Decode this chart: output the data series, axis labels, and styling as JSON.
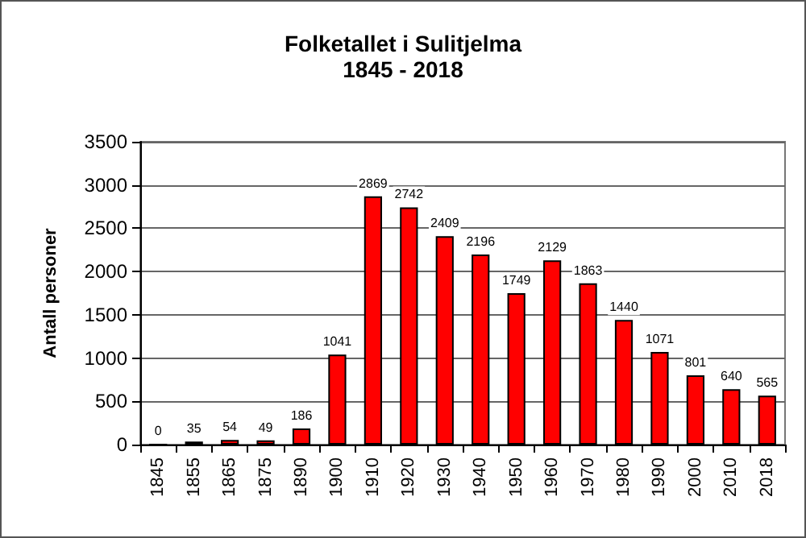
{
  "chart_data": {
    "type": "bar",
    "title": "Folketallet i Sulitjelma",
    "subtitle": "1845 - 2018",
    "ylabel": "Antall personer",
    "categories": [
      "1845",
      "1855",
      "1865",
      "1875",
      "1890",
      "1900",
      "1910",
      "1920",
      "1930",
      "1940",
      "1950",
      "1960",
      "1970",
      "1980",
      "1990",
      "2000",
      "2010",
      "2018"
    ],
    "values": [
      0,
      35,
      54,
      49,
      186,
      1041,
      2869,
      2742,
      2409,
      2196,
      1749,
      2129,
      1863,
      1440,
      1071,
      801,
      640,
      565
    ],
    "color": "#ff0000",
    "ylim": [
      0,
      3500
    ],
    "yticks": [
      0,
      500,
      1000,
      1500,
      2000,
      2500,
      3000,
      3500
    ],
    "grid": "y",
    "data_labels": true
  }
}
